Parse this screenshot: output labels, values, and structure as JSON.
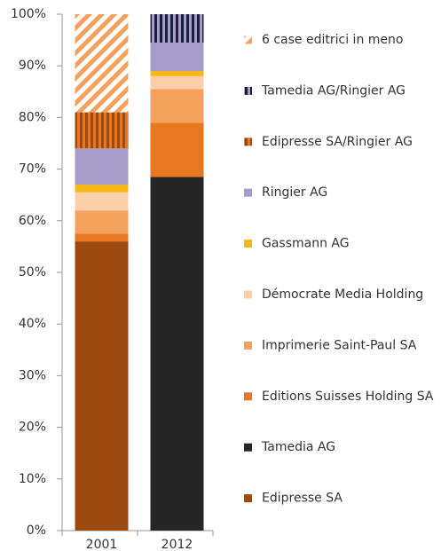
{
  "chart_data": {
    "type": "stacked_bar",
    "categories": [
      "2001",
      "2012"
    ],
    "ylim": [
      0,
      100
    ],
    "yticks": [
      {
        "value": 0,
        "label": "0%"
      },
      {
        "value": 10,
        "label": "10%"
      },
      {
        "value": 20,
        "label": "20%"
      },
      {
        "value": 30,
        "label": "30%"
      },
      {
        "value": 40,
        "label": "40%"
      },
      {
        "value": 50,
        "label": "50%"
      },
      {
        "value": 60,
        "label": "60%"
      },
      {
        "value": 70,
        "label": "70%"
      },
      {
        "value": 80,
        "label": "80%"
      },
      {
        "value": 90,
        "label": "90%"
      },
      {
        "value": 100,
        "label": "100%"
      }
    ],
    "legend": "right",
    "series": [
      {
        "name": "Edipresse SA",
        "color": "#9c4a10",
        "values": [
          56,
          0
        ]
      },
      {
        "name": "Tamedia AG",
        "color": "#262626",
        "values": [
          0,
          68.5
        ]
      },
      {
        "name": "Editions Suisses Holding SA",
        "color": "#e87722",
        "values": [
          1.5,
          10.5
        ]
      },
      {
        "name": "Imprimerie Saint-Paul SA",
        "color": "#f4a15d",
        "values": [
          4.5,
          6.5
        ]
      },
      {
        "name": "Démocrate Media Holding",
        "color": "#fbd0a8",
        "values": [
          3.5,
          2.5
        ]
      },
      {
        "name": "Gassmann AG",
        "color": "#f6b717",
        "values": [
          1.5,
          1
        ]
      },
      {
        "name": "Ringier AG",
        "color": "#a79bc7",
        "values": [
          7,
          5.5
        ]
      },
      {
        "name": "Edipresse  SA/Ringier AG",
        "color": "#9c4a10",
        "color2": "#e87722",
        "pattern": "vertical",
        "values": [
          7,
          0
        ]
      },
      {
        "name": "Tamedia AG/Ringier AG",
        "color": "#1b1f3b",
        "color2": "#a79bc7",
        "pattern": "vertical",
        "values": [
          0,
          5.5
        ]
      },
      {
        "name": "6 case editrici in meno",
        "color": "#f4a15d",
        "color2": "#ffffff",
        "pattern": "diagonal",
        "values": [
          19,
          0
        ]
      }
    ]
  }
}
